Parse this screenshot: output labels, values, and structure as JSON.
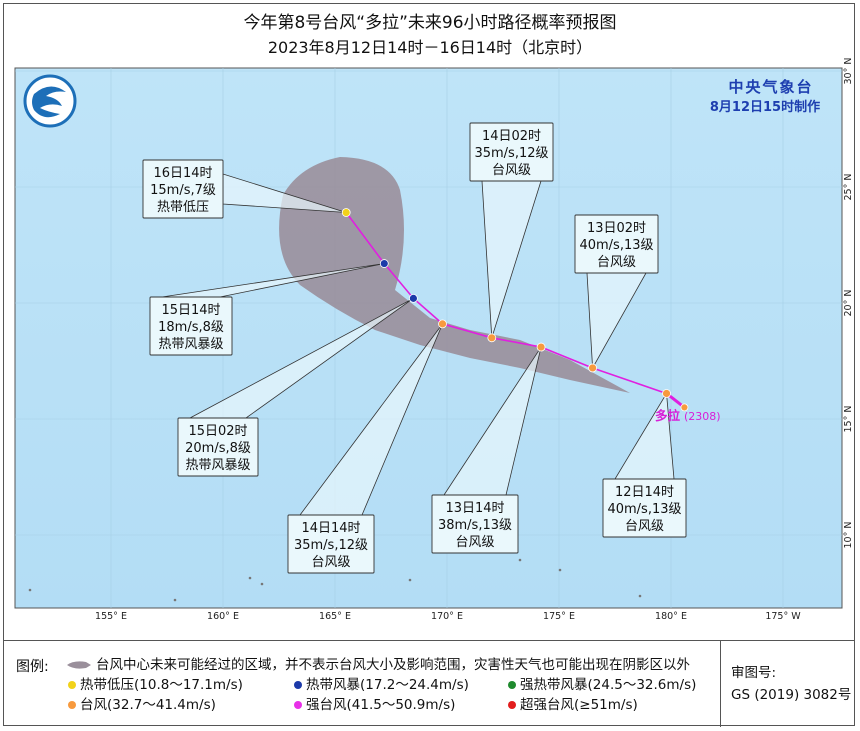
{
  "header": {
    "title": "今年第8号台风“多拉”未来96小时路径概率预报图",
    "subtitle": "2023年8月12日14时－16日14时（北京时）"
  },
  "agency": {
    "name": "中央气象台",
    "issued": "8月12日15时制作"
  },
  "colors": {
    "sea": "#b9e1f7",
    "cone": "#9a8f9b",
    "track": "#e020e0",
    "land": "#f5f1c8"
  },
  "axes": {
    "lon_labels": [
      "155° E",
      "160° E",
      "165° E",
      "170° E",
      "175° E",
      "180° E",
      "175° W"
    ],
    "lat_labels": [
      "30° N",
      "25° N",
      "20° N",
      "15° N",
      "10° N"
    ]
  },
  "storm": {
    "name": "多拉",
    "code": "(2308)"
  },
  "forecast_points": [
    {
      "time": "12日14时",
      "wind": "40m/s,13级",
      "category": "台风级",
      "lon": 179.8,
      "lat": 16.1
    },
    {
      "time": "13日02时",
      "wind": "40m/s,13级",
      "category": "台风级",
      "lon": 176.5,
      "lat": 17.2
    },
    {
      "time": "13日14时",
      "wind": "38m/s,13级",
      "category": "台风级",
      "lon": 174.2,
      "lat": 18.1
    },
    {
      "time": "14日02时",
      "wind": "35m/s,12级",
      "category": "台风级",
      "lon": 172.0,
      "lat": 18.5
    },
    {
      "time": "14日14时",
      "wind": "35m/s,12级",
      "category": "台风级",
      "lon": 169.8,
      "lat": 19.1
    },
    {
      "time": "15日02时",
      "wind": "20m/s,8级",
      "category": "热带风暴级",
      "lon": 168.5,
      "lat": 20.2
    },
    {
      "time": "15日14时",
      "wind": "18m/s,8级",
      "category": "热带风暴级",
      "lon": 167.2,
      "lat": 21.7
    },
    {
      "time": "16日14时",
      "wind": "15m/s,7级",
      "category": "热带低压",
      "lon": 165.5,
      "lat": 23.9
    }
  ],
  "legend": {
    "title": "图例:",
    "cone_text": "台风中心未来可能经过的区域，并不表示台风大小及影响范围，灾害性天气也可能出现在阴影区以外",
    "items": [
      {
        "label": "热带低压(10.8～17.1m/s)",
        "color": "#f2d21a"
      },
      {
        "label": "热带风暴(17.2～24.4m/s)",
        "color": "#1c3aa9"
      },
      {
        "label": "强热带风暴(24.5～32.6m/s)",
        "color": "#1f8a2e"
      },
      {
        "label": "台风(32.7～41.4m/s)",
        "color": "#f79a3e"
      },
      {
        "label": "强台风(41.5～50.9m/s)",
        "color": "#e830e8"
      },
      {
        "label": "超强台风(≥51m/s)",
        "color": "#e21d1d"
      }
    ]
  },
  "review": {
    "label": "审图号:",
    "number": "GS (2019) 3082号"
  }
}
